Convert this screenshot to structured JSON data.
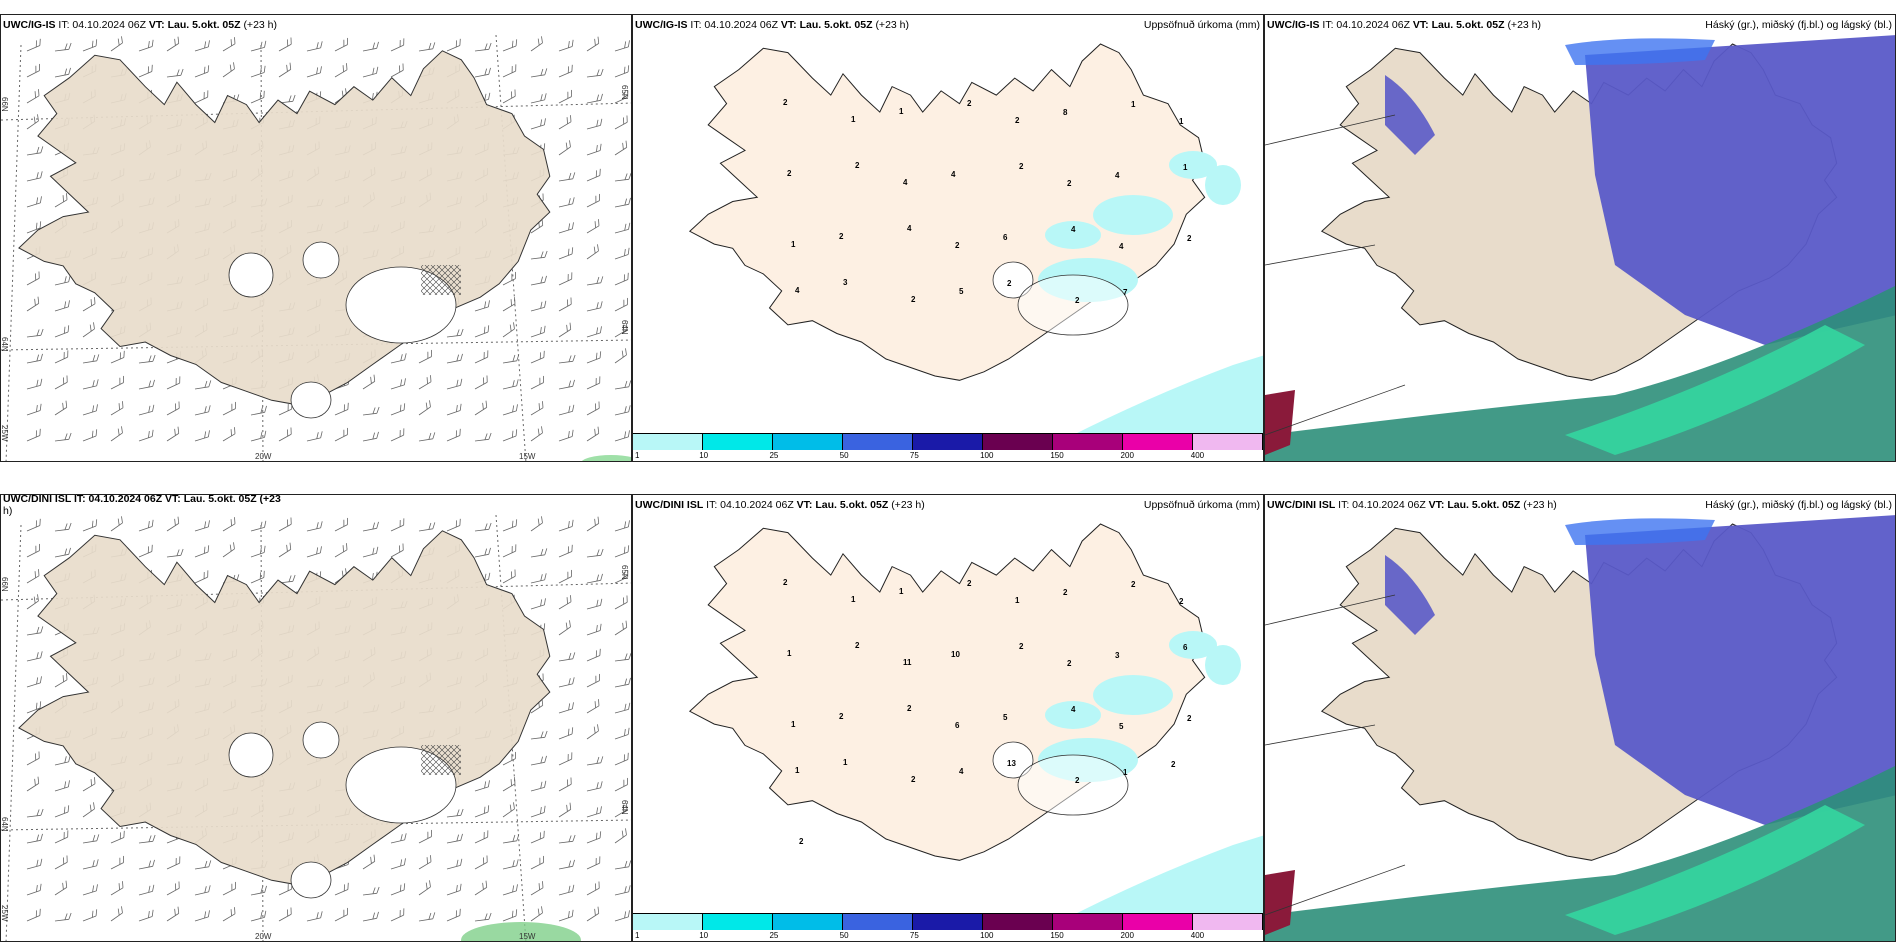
{
  "rows": [
    {
      "model": "UWC/IG-IS",
      "it_label": "IT:",
      "it_value": "04.10.2024 06Z",
      "vt_label": "VT:",
      "vt_value": "Lau. 5.okt. 05Z",
      "lead": "(+23 h)",
      "wind_panel": {
        "lat_labels": [
          "66N",
          "64N",
          "25W"
        ],
        "lat_labels_right": [
          "65N",
          "64N"
        ],
        "lon_labels": [
          "20W",
          "15W"
        ]
      },
      "precip_panel": {
        "title": "Uppsöfnuð úrkoma (mm)",
        "values": [
          "2",
          "1",
          "1",
          "2",
          "2",
          "8",
          "1",
          "1",
          "2",
          "2",
          "4",
          "4",
          "2",
          "2",
          "4",
          "1",
          "1",
          "2",
          "4",
          "2",
          "6",
          "4",
          "4",
          "2",
          "4",
          "3",
          "2",
          "5",
          "2",
          "2",
          "7"
        ]
      },
      "cloud_panel": {
        "title": "Háský (gr.), miðský (fj.bl.) og lágský (bl.)"
      }
    },
    {
      "model": "UWC/DINI ISL",
      "it_label": "IT:",
      "it_value": "04.10.2024 06Z",
      "vt_label": "VT:",
      "vt_value": "Lau. 5.okt. 05Z",
      "lead": "(+23 h)",
      "wind_panel": {
        "header_line1": "UWC/DINI ISL IT: 04.10.2024 06Z VT: Lau. 5.okt. 05Z (+23",
        "header_line2": "h)",
        "lat_labels": [
          "66N",
          "64N",
          "25W"
        ],
        "lat_labels_right": [
          "65N",
          "64N"
        ],
        "lon_labels": [
          "20W",
          "15W"
        ]
      },
      "precip_panel": {
        "title": "Uppsöfnuð úrkoma (mm)",
        "values": [
          "2",
          "1",
          "1",
          "2",
          "1",
          "2",
          "2",
          "2",
          "1",
          "2",
          "11",
          "10",
          "2",
          "2",
          "3",
          "6",
          "1",
          "2",
          "2",
          "6",
          "5",
          "4",
          "5",
          "2",
          "1",
          "1",
          "2",
          "4",
          "13",
          "2",
          "1",
          "2",
          "2"
        ]
      },
      "cloud_panel": {
        "title": "Háský (gr.), miðský (fj.bl.) og lágský (bl.)"
      }
    }
  ],
  "colorbar": {
    "colors": [
      "#b8f7f7",
      "#00e8e8",
      "#00bde8",
      "#3a63e0",
      "#1a1aa8",
      "#6a0050",
      "#a8007a",
      "#ea00a8",
      "#f0b8f0"
    ],
    "labels": [
      "1",
      "10",
      "25",
      "50",
      "75",
      "100",
      "150",
      "200",
      "400"
    ]
  },
  "colors": {
    "land": "#e8dccb",
    "land_precip": "#fdf0e3",
    "precip_light": "#b8f7f7",
    "high_cloud": "#5a5ac8",
    "mid_cloud": "#2e8f7a",
    "low_cloud": "#34d6a0"
  }
}
